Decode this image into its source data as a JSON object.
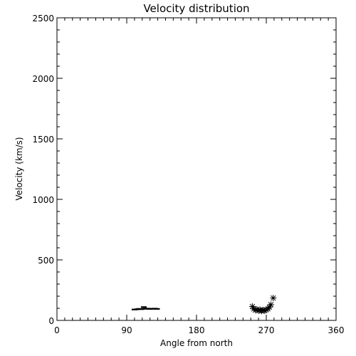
{
  "chart_data": {
    "type": "scatter",
    "title": "Velocity distribution",
    "xlabel": "Angle from north",
    "ylabel": "Velocity (km/s)",
    "xlim": [
      0,
      360
    ],
    "ylim": [
      0,
      2500
    ],
    "x_ticks": [
      0,
      90,
      180,
      270,
      360
    ],
    "y_ticks": [
      0,
      500,
      1000,
      1500,
      2000,
      2500
    ],
    "x_tick_labels": [
      "0",
      "90",
      "180",
      "270",
      "360"
    ],
    "y_tick_labels": [
      "0",
      "500",
      "1000",
      "1500",
      "2000",
      "2500"
    ],
    "x_minor_step": 10,
    "y_minor_step": 100,
    "grid": false,
    "legend": "none",
    "series": [
      {
        "marker": "dash",
        "color": "#000000",
        "points": [
          {
            "x": 100,
            "y": 90
          },
          {
            "x": 103,
            "y": 92
          },
          {
            "x": 106,
            "y": 95
          },
          {
            "x": 109,
            "y": 93
          },
          {
            "x": 112,
            "y": 110
          },
          {
            "x": 114,
            "y": 96
          },
          {
            "x": 117,
            "y": 97
          },
          {
            "x": 120,
            "y": 95
          },
          {
            "x": 123,
            "y": 96
          },
          {
            "x": 126,
            "y": 97
          },
          {
            "x": 129,
            "y": 95
          }
        ]
      },
      {
        "marker": "asterisk",
        "color": "#000000",
        "points": [
          {
            "x": 252,
            "y": 115
          },
          {
            "x": 254,
            "y": 95
          },
          {
            "x": 256,
            "y": 85
          },
          {
            "x": 258,
            "y": 90
          },
          {
            "x": 260,
            "y": 80
          },
          {
            "x": 262,
            "y": 88
          },
          {
            "x": 264,
            "y": 78
          },
          {
            "x": 266,
            "y": 85
          },
          {
            "x": 268,
            "y": 80
          },
          {
            "x": 270,
            "y": 88
          },
          {
            "x": 272,
            "y": 95
          },
          {
            "x": 274,
            "y": 110
          },
          {
            "x": 276,
            "y": 130
          },
          {
            "x": 279,
            "y": 185
          }
        ]
      }
    ]
  }
}
